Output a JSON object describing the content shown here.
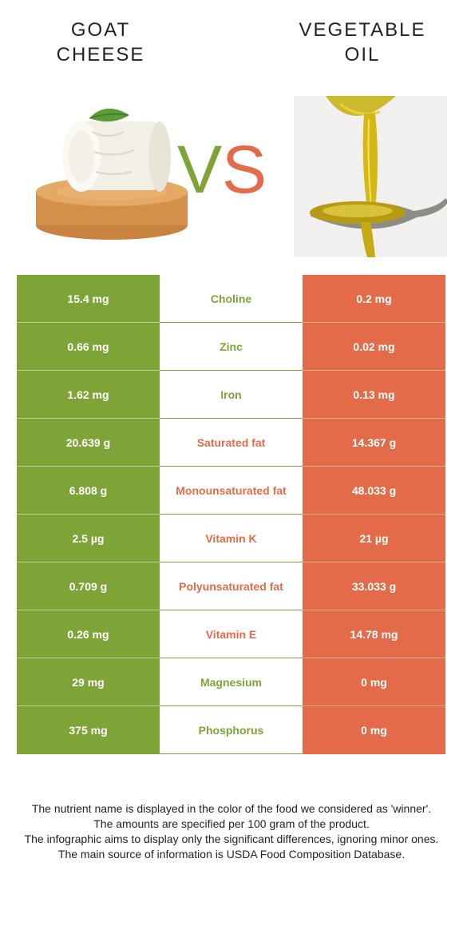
{
  "header": {
    "left_food": {
      "line1": "GOAT",
      "line2": "CHEESE"
    },
    "right_food": {
      "line1": "VEGETABLE",
      "line2": "OIL"
    },
    "vs_v": "V",
    "vs_s": "S"
  },
  "colors": {
    "left": "#7ea437",
    "right": "#e46b4a"
  },
  "rows": [
    {
      "left": "15.4 mg",
      "nutrient": "Choline",
      "right": "0.2 mg",
      "winner": "left"
    },
    {
      "left": "0.66 mg",
      "nutrient": "Zinc",
      "right": "0.02 mg",
      "winner": "left"
    },
    {
      "left": "1.62 mg",
      "nutrient": "Iron",
      "right": "0.13 mg",
      "winner": "left"
    },
    {
      "left": "20.639 g",
      "nutrient": "Saturated fat",
      "right": "14.367 g",
      "winner": "right"
    },
    {
      "left": "6.808 g",
      "nutrient": "Monounsaturated fat",
      "right": "48.033 g",
      "winner": "right"
    },
    {
      "left": "2.5 µg",
      "nutrient": "Vitamin K",
      "right": "21 µg",
      "winner": "right"
    },
    {
      "left": "0.709 g",
      "nutrient": "Polyunsaturated fat",
      "right": "33.033 g",
      "winner": "right"
    },
    {
      "left": "0.26 mg",
      "nutrient": "Vitamin E",
      "right": "14.78 mg",
      "winner": "right"
    },
    {
      "left": "29 mg",
      "nutrient": "Magnesium",
      "right": "0 mg",
      "winner": "left"
    },
    {
      "left": "375 mg",
      "nutrient": "Phosphorus",
      "right": "0 mg",
      "winner": "left"
    }
  ],
  "footnotes": [
    "The nutrient name is displayed in the color of the food we considered as 'winner'.",
    "The amounts are specified per 100 gram of the product.",
    "The infographic aims to display only the significant differences, ignoring minor ones.",
    "The main source of information is USDA Food Composition Database."
  ]
}
